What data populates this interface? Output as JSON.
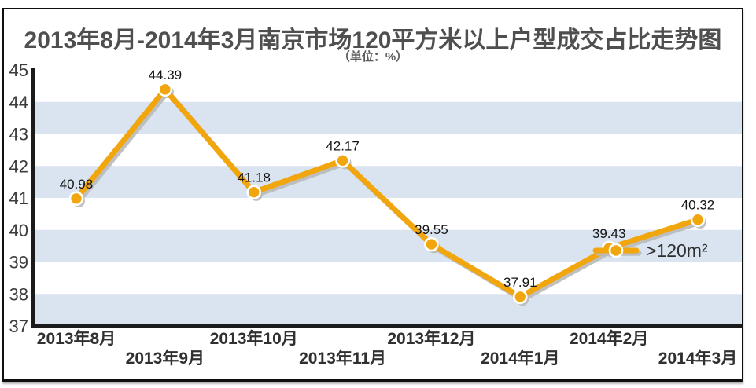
{
  "header": {
    "title": "2013年8月-2014年3月南京市场120平方米以上户型成交占比走势图",
    "subtitle": "（单位：%）"
  },
  "chart_data": {
    "type": "line",
    "title": "2013年8月-2014年3月南京市场120平方米以上户型成交占比走势图",
    "unit_label": "（单位：%）",
    "categories": [
      "2013年8月",
      "2013年9月",
      "2013年10月",
      "2013年11月",
      "2013年12月",
      "2014年1月",
      "2014年2月",
      "2014年3月"
    ],
    "values": [
      40.98,
      44.39,
      41.18,
      42.17,
      39.55,
      37.91,
      39.43,
      40.32
    ],
    "data_labels": [
      "40.98",
      "44.39",
      "41.18",
      "42.17",
      "39.55",
      "37.91",
      "39.43",
      "40.32"
    ],
    "series": [
      {
        "name": ">120m²",
        "values": [
          40.98,
          44.39,
          41.18,
          42.17,
          39.55,
          37.91,
          39.43,
          40.32
        ]
      }
    ],
    "legend": {
      "label": ">120m²",
      "position": "right-middle"
    },
    "ylim": [
      37,
      45
    ],
    "yticks": [
      45,
      44,
      43,
      42,
      41,
      40,
      39,
      38,
      37
    ],
    "xlabel": "",
    "ylabel": "",
    "grid": "alternating-horizontal-bands",
    "colors": {
      "line": "#F2A60D",
      "marker_fill": "#F2A60D",
      "marker_ring": "#FFFFFF",
      "shadow": "#B9B9B9",
      "band": "#DAE4F0",
      "axis": "#1B1B1B",
      "tick_text": "#3C3C3C",
      "category_text": "#303030",
      "data_label_text": "#141414",
      "legend_text": "#2E2E2E"
    }
  }
}
